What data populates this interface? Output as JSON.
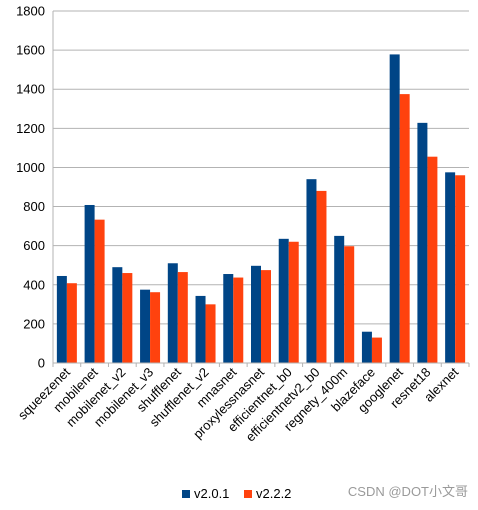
{
  "chart_data": {
    "type": "bar",
    "title": "",
    "xlabel": "",
    "ylabel": "",
    "ylim": [
      0,
      1800
    ],
    "yticks": [
      0,
      200,
      400,
      600,
      800,
      1000,
      1200,
      1400,
      1600,
      1800
    ],
    "grid": true,
    "legend_position": "bottom-center",
    "categories": [
      "squeezenet",
      "mobilenet",
      "mobilenet_v2",
      "mobilenet_v3",
      "shufflenet",
      "shufflenet_v2",
      "mnasnet",
      "proxylessnasnet",
      "efficientnet_b0",
      "efficientnetv2_b0",
      "regnety_400m",
      "blazeface",
      "googlenet",
      "resnet18",
      "alexnet"
    ],
    "series": [
      {
        "name": "v2.0.1",
        "color": "#004586",
        "values": [
          445,
          808,
          490,
          375,
          510,
          343,
          455,
          497,
          635,
          940,
          650,
          160,
          1578,
          1228,
          975
        ]
      },
      {
        "name": "v2.2.2",
        "color": "#ff420e",
        "values": [
          408,
          733,
          460,
          362,
          465,
          300,
          437,
          475,
          620,
          880,
          597,
          130,
          1375,
          1055,
          960
        ]
      }
    ]
  },
  "watermark": {
    "text": "CSDN @DOT小文哥"
  }
}
